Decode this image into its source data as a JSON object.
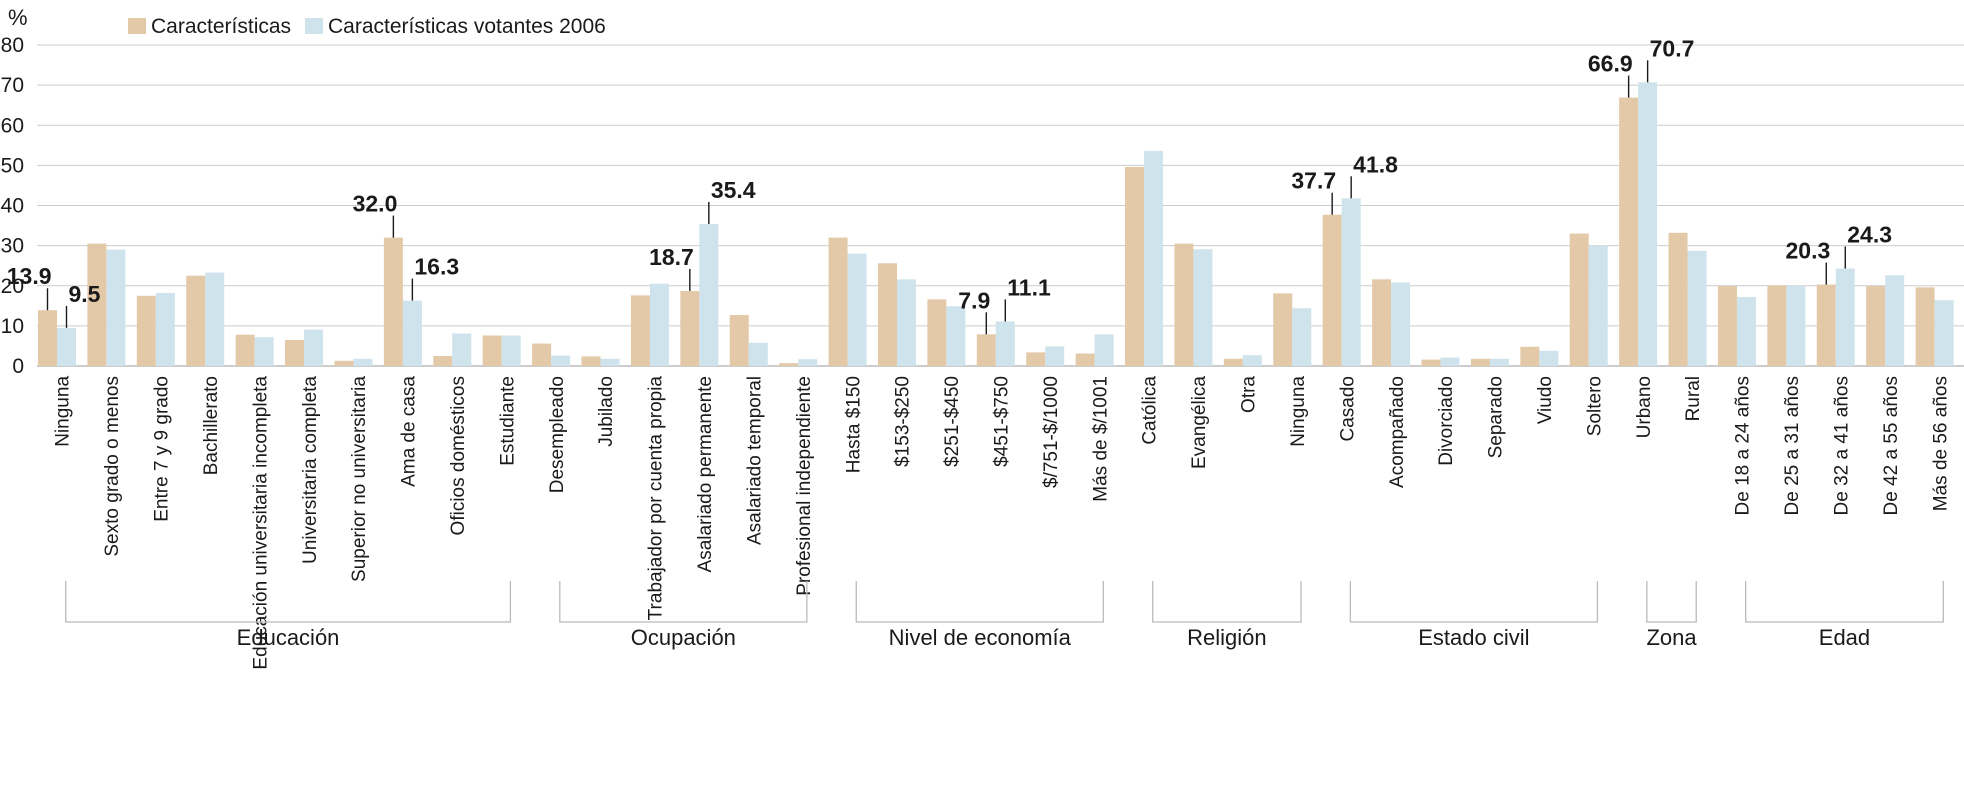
{
  "chart_data": {
    "type": "bar",
    "y_unit": "%",
    "ylim": [
      0,
      80
    ],
    "y_ticks": [
      0,
      10,
      20,
      30,
      40,
      50,
      60,
      70,
      80
    ],
    "grid": true,
    "legend_position": "top-left",
    "colors": {
      "series_1": "#e3c9a7",
      "series_2": "#cfe3ec",
      "grid": "#cccccc",
      "bracket": "#bbbbbb"
    },
    "categories": [
      "Ninguna",
      "Sexto grado o menos",
      "Entre 7 y 9 grado",
      "Bachillerato",
      "Educación universitaria incompleta",
      "Universitaria completa",
      "Superior no universitaria",
      "Ama de casa",
      "Oficios domésticos",
      "Estudiante",
      "Desempleado",
      "Jubilado",
      "Trabajador por cuenta propia",
      "Asalariado permanente",
      "Asalariado temporal",
      "Profesional independiente",
      "Hasta $150",
      "$153-$250",
      "$251-$450",
      "$451-$750",
      "$/751-$/1000",
      "Más de $/1001",
      "Católica",
      "Evangélica",
      "Otra",
      "Ninguna",
      "Casado",
      "Acompañado",
      "Divorciado",
      "Separado",
      "Viudo",
      "Soltero",
      "Urbano",
      "Rural",
      "De 18 a 24 años",
      "De 25 a 31 años",
      "De 32 a 41 años",
      "De 42 a 55 años",
      "Más de 56 años"
    ],
    "series": [
      {
        "name": "Características",
        "values": [
          13.9,
          30.5,
          17.5,
          22.5,
          7.8,
          6.5,
          1.3,
          32.0,
          2.5,
          7.6,
          5.6,
          2.4,
          17.6,
          18.7,
          12.7,
          0.7,
          32.0,
          25.6,
          16.6,
          7.9,
          3.4,
          3.1,
          49.6,
          30.5,
          1.8,
          18.1,
          37.7,
          21.6,
          1.6,
          1.8,
          4.8,
          33.0,
          66.9,
          33.2,
          19.9,
          20.1,
          20.3,
          19.9,
          19.6
        ]
      },
      {
        "name": "Características votantes 2006",
        "values": [
          9.5,
          29.0,
          18.2,
          23.3,
          7.2,
          9.1,
          1.8,
          16.3,
          8.1,
          7.6,
          2.6,
          1.8,
          20.5,
          35.4,
          5.8,
          1.7,
          28.0,
          21.6,
          14.9,
          11.1,
          4.9,
          7.9,
          53.6,
          29.1,
          2.7,
          14.4,
          41.8,
          20.8,
          2.1,
          1.8,
          3.8,
          30.0,
          70.7,
          28.7,
          17.2,
          20.0,
          24.3,
          22.6,
          16.4
        ]
      }
    ],
    "groups": [
      {
        "label": "Educación",
        "start": 0,
        "end": 9
      },
      {
        "label": "Ocupación",
        "start": 10,
        "end": 15
      },
      {
        "label": "Nivel de economía",
        "start": 16,
        "end": 21
      },
      {
        "label": "Religión",
        "start": 22,
        "end": 25
      },
      {
        "label": "Estado civil",
        "start": 26,
        "end": 31
      },
      {
        "label": "Zona",
        "start": 32,
        "end": 33
      },
      {
        "label": "Edad",
        "start": 34,
        "end": 38
      }
    ],
    "annotations": [
      {
        "index": 0,
        "series": 0,
        "text": "13.9"
      },
      {
        "index": 0,
        "series": 1,
        "text": "9.5"
      },
      {
        "index": 7,
        "series": 0,
        "text": "32.0"
      },
      {
        "index": 7,
        "series": 1,
        "text": "16.3"
      },
      {
        "index": 13,
        "series": 0,
        "text": "18.7"
      },
      {
        "index": 13,
        "series": 1,
        "text": "35.4"
      },
      {
        "index": 19,
        "series": 0,
        "text": "7.9"
      },
      {
        "index": 19,
        "series": 1,
        "text": "11.1"
      },
      {
        "index": 26,
        "series": 0,
        "text": "37.7"
      },
      {
        "index": 26,
        "series": 1,
        "text": "41.8"
      },
      {
        "index": 32,
        "series": 0,
        "text": "66.9"
      },
      {
        "index": 32,
        "series": 1,
        "text": "70.7"
      },
      {
        "index": 36,
        "series": 0,
        "text": "20.3"
      },
      {
        "index": 36,
        "series": 1,
        "text": "24.3"
      }
    ]
  }
}
